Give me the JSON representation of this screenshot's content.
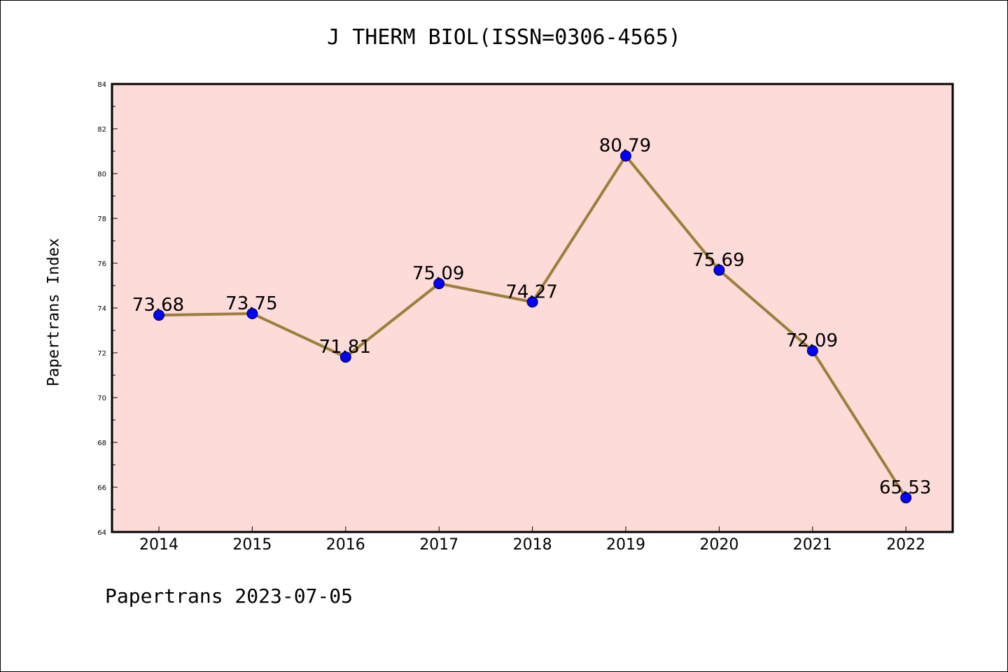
{
  "chart_data": {
    "type": "line",
    "title": "J THERM BIOL(ISSN=0306-4565)",
    "xlabel": "",
    "ylabel": "Papertrans Index",
    "categories": [
      "2014",
      "2015",
      "2016",
      "2017",
      "2018",
      "2019",
      "2020",
      "2021",
      "2022"
    ],
    "series": [
      {
        "values": [
          73.68,
          73.75,
          71.81,
          75.09,
          74.27,
          80.79,
          75.69,
          72.09,
          65.53
        ],
        "data_labels": [
          "73.68",
          "73.75",
          "71.81",
          "75.09",
          "74.27",
          "80.79",
          "75.69",
          "72.09",
          "65.53"
        ]
      }
    ],
    "ylim": [
      64,
      84
    ],
    "yticks": [
      "64",
      "66",
      "68",
      "70",
      "72",
      "74",
      "76",
      "78",
      "80",
      "82",
      "84"
    ],
    "grid": false,
    "legend": "none",
    "colors": {
      "plot_background": "#fddbd8",
      "line": "#9b7f3a",
      "marker": "#0000ff"
    }
  },
  "footer": "Papertrans 2023-07-05"
}
